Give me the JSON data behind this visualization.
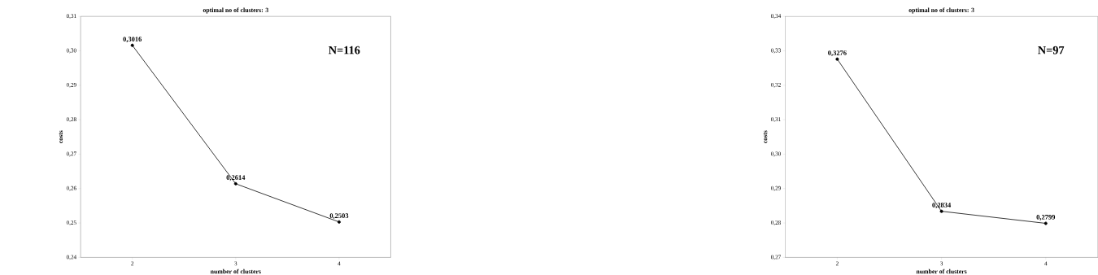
{
  "chart_data": [
    {
      "type": "line",
      "title": "optimal no of clusters: 3",
      "xlabel": "number of clusters",
      "ylabel": "costs",
      "x": [
        2,
        3,
        4
      ],
      "values": [
        0.3016,
        0.2614,
        0.2503
      ],
      "value_labels": [
        "0,3016",
        "0,2614",
        "0,2503"
      ],
      "color": "#000000",
      "marker": "circle",
      "line_style": "solid",
      "xlim": [
        1.5,
        4.5
      ],
      "xticks": [
        2,
        3,
        4
      ],
      "ylim": [
        0.24,
        0.31
      ],
      "yticks": [
        {
          "value": 0.24,
          "label": "0,24"
        },
        {
          "value": 0.25,
          "label": "0,25"
        },
        {
          "value": 0.26,
          "label": "0,26"
        },
        {
          "value": 0.27,
          "label": "0,27"
        },
        {
          "value": 0.28,
          "label": "0,28"
        },
        {
          "value": 0.29,
          "label": "0,29"
        },
        {
          "value": 0.3,
          "label": "0,30"
        },
        {
          "value": 0.31,
          "label": "0,31"
        }
      ],
      "annotations": [
        "N=116"
      ]
    },
    {
      "type": "line",
      "title": "optimal no of clusters: 3",
      "xlabel": "number of clusters",
      "ylabel": "costs",
      "x": [
        2,
        3,
        4
      ],
      "values": [
        0.3276,
        0.2834,
        0.2799
      ],
      "value_labels": [
        "0,3276",
        "0,2834",
        "0,2799"
      ],
      "color": "#000000",
      "marker": "circle",
      "line_style": "solid",
      "xlim": [
        1.5,
        4.5
      ],
      "xticks": [
        2,
        3,
        4
      ],
      "ylim": [
        0.27,
        0.34
      ],
      "yticks": [
        {
          "value": 0.27,
          "label": "0,27"
        },
        {
          "value": 0.28,
          "label": "0,28"
        },
        {
          "value": 0.29,
          "label": "0,29"
        },
        {
          "value": 0.3,
          "label": "0,30"
        },
        {
          "value": 0.31,
          "label": "0,31"
        },
        {
          "value": 0.32,
          "label": "0,32"
        },
        {
          "value": 0.33,
          "label": "0,33"
        },
        {
          "value": 0.34,
          "label": "0,34"
        }
      ],
      "annotations": [
        "N=97"
      ]
    }
  ]
}
